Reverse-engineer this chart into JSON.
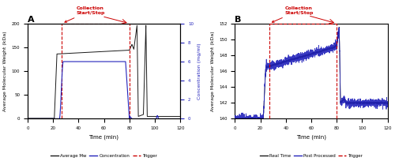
{
  "panel_A": {
    "title": "A",
    "xlabel": "Time (min)",
    "ylabel_left": "Average Molecular Weight (kDa)",
    "ylabel_right": "Concentration (mg/ml)",
    "xlim": [
      0,
      120
    ],
    "ylim_left": [
      0,
      200
    ],
    "ylim_right": [
      0,
      10
    ],
    "yticks_left": [
      0,
      50,
      100,
      150,
      200
    ],
    "yticks_right": [
      0,
      2,
      4,
      6,
      8,
      10
    ],
    "xticks": [
      0,
      20,
      40,
      60,
      80,
      100,
      120
    ],
    "trigger_x_start": 27,
    "trigger_x_end": 80,
    "annotation_text": "Collection\nStart/Stop",
    "mw_color": "#1a1a1a",
    "conc_color": "#2222bb",
    "trigger_color": "#cc0000"
  },
  "panel_B": {
    "title": "B",
    "xlabel": "Time (min)",
    "ylabel_left": "Average Molecular Weight (kDa)",
    "xlim": [
      0,
      120
    ],
    "ylim_left": [
      140,
      152
    ],
    "yticks_left": [
      140,
      142,
      144,
      146,
      148,
      150,
      152
    ],
    "xticks": [
      0,
      20,
      40,
      60,
      80,
      100,
      120
    ],
    "trigger_x_start": 27,
    "trigger_x_end": 80,
    "annotation_text": "Collection\nStart/Stop",
    "realtime_color": "#1a1a1a",
    "postprocessed_color": "#2222bb",
    "trigger_color": "#cc0000"
  },
  "legend_A": {
    "items": [
      "Average Mw",
      "Concentration",
      "Trigger"
    ],
    "colors": [
      "#1a1a1a",
      "#2222bb",
      "#cc0000"
    ],
    "styles": [
      "solid",
      "solid",
      "dashed"
    ]
  },
  "legend_B": {
    "items": [
      "Real Time",
      "Post Processed",
      "Trigger"
    ],
    "colors": [
      "#1a1a1a",
      "#2222bb",
      "#cc0000"
    ],
    "styles": [
      "solid",
      "solid",
      "dashed"
    ]
  }
}
